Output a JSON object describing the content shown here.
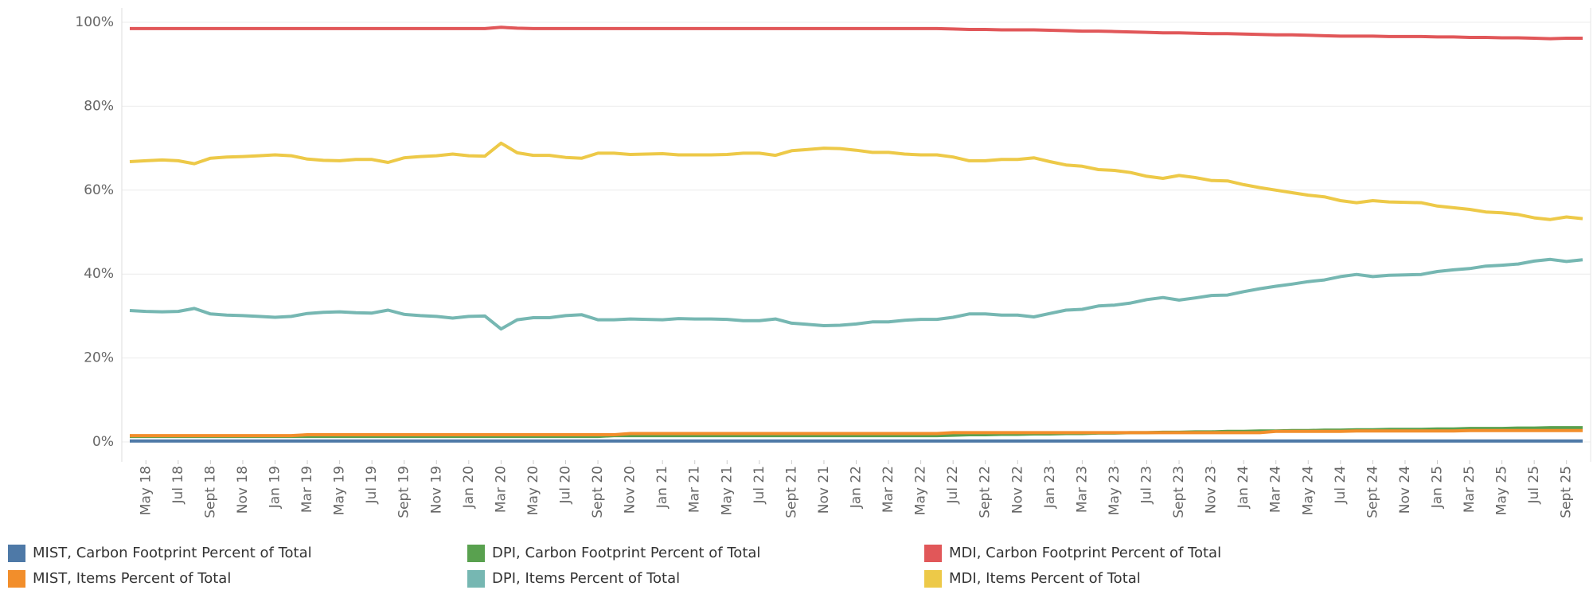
{
  "chart_data": {
    "type": "line",
    "categories": [
      null,
      "May 18",
      null,
      "Jul 18",
      null,
      "Sept 18",
      null,
      "Nov 18",
      null,
      "Jan 19",
      null,
      "Mar 19",
      null,
      "May 19",
      null,
      "Jul 19",
      null,
      "Sept 19",
      null,
      "Nov 19",
      null,
      "Jan 20",
      null,
      "Mar 20",
      null,
      "May 20",
      null,
      "Jul 20",
      null,
      "Sept 20",
      null,
      "Nov 20",
      null,
      "Jan 21",
      null,
      "Mar 21",
      null,
      "May 21",
      null,
      "Jul 21",
      null,
      "Sept 21",
      null,
      "Nov 21",
      null,
      "Jan 22",
      null,
      "Mar 22",
      null,
      "May 22",
      null,
      "Jul 22",
      null,
      "Sept 22",
      null,
      "Nov 22",
      null,
      "Jan 23",
      null,
      "Mar 23",
      null,
      "May 23",
      null,
      "Jul 23",
      null,
      "Sept 23",
      null,
      "Nov 23",
      null,
      "Jan 24",
      null,
      "Mar 24",
      null,
      "May 24",
      null,
      "Jul 24",
      null,
      "Sept 24",
      null,
      "Nov 24",
      null,
      "Jan 25",
      null,
      "Mar 25",
      null,
      "May 25",
      null,
      "Jul 25",
      null,
      "Sept 25",
      null
    ],
    "ylim": [
      0,
      100
    ],
    "yticks": [
      {
        "value": 0,
        "label": "0%"
      },
      {
        "value": 20,
        "label": "20%"
      },
      {
        "value": 40,
        "label": "40%"
      },
      {
        "value": 60,
        "label": "60%"
      },
      {
        "value": 80,
        "label": "80%"
      },
      {
        "value": 100,
        "label": "100%"
      }
    ],
    "grid": true,
    "series": [
      {
        "name": "MIST, Carbon Footprint Percent of Total",
        "color": "#4e79a7",
        "values": [
          0.2,
          0.2,
          0.2,
          0.2,
          0.2,
          0.2,
          0.2,
          0.2,
          0.2,
          0.2,
          0.2,
          0.2,
          0.2,
          0.2,
          0.2,
          0.2,
          0.2,
          0.2,
          0.2,
          0.2,
          0.2,
          0.2,
          0.2,
          0.2,
          0.2,
          0.2,
          0.2,
          0.2,
          0.2,
          0.2,
          0.2,
          0.2,
          0.2,
          0.2,
          0.2,
          0.2,
          0.2,
          0.2,
          0.2,
          0.2,
          0.2,
          0.2,
          0.2,
          0.2,
          0.2,
          0.2,
          0.2,
          0.2,
          0.2,
          0.2,
          0.2,
          0.2,
          0.2,
          0.2,
          0.2,
          0.2,
          0.2,
          0.2,
          0.2,
          0.2,
          0.2,
          0.2,
          0.2,
          0.2,
          0.2,
          0.2,
          0.2,
          0.2,
          0.2,
          0.2,
          0.2,
          0.2,
          0.2,
          0.2,
          0.2,
          0.2,
          0.2,
          0.2,
          0.2,
          0.2,
          0.2,
          0.2,
          0.2,
          0.2,
          0.2,
          0.2,
          0.2,
          0.2,
          0.2,
          0.2,
          0.2
        ]
      },
      {
        "name": "MIST, Items Percent of Total",
        "color": "#f28e2b",
        "values": [
          1.5,
          1.5,
          1.5,
          1.5,
          1.5,
          1.5,
          1.5,
          1.5,
          1.5,
          1.5,
          1.5,
          1.7,
          1.7,
          1.7,
          1.7,
          1.7,
          1.7,
          1.7,
          1.7,
          1.7,
          1.7,
          1.7,
          1.7,
          1.7,
          1.7,
          1.7,
          1.7,
          1.7,
          1.7,
          1.7,
          1.7,
          2,
          2,
          2,
          2,
          2,
          2,
          2,
          2,
          2,
          2,
          2,
          2,
          2,
          2,
          2,
          2,
          2,
          2,
          2,
          2,
          2.2,
          2.2,
          2.2,
          2.2,
          2.2,
          2.2,
          2.2,
          2.2,
          2.2,
          2.2,
          2.2,
          2.2,
          2.2,
          2.2,
          2.2,
          2.2,
          2.2,
          2.2,
          2.2,
          2.2,
          2.5,
          2.5,
          2.5,
          2.5,
          2.5,
          2.6,
          2.6,
          2.6,
          2.6,
          2.6,
          2.6,
          2.6,
          2.7,
          2.7,
          2.7,
          2.7,
          2.7,
          2.7,
          2.7,
          2.7
        ]
      },
      {
        "name": "DPI, Carbon Footprint Percent of Total",
        "color": "#59a14f",
        "values": [
          1.3,
          1.3,
          1.3,
          1.3,
          1.3,
          1.3,
          1.3,
          1.3,
          1.3,
          1.3,
          1.3,
          1.3,
          1.3,
          1.3,
          1.3,
          1.3,
          1.3,
          1.3,
          1.3,
          1.3,
          1.3,
          1.3,
          1.3,
          1.3,
          1.3,
          1.3,
          1.3,
          1.3,
          1.3,
          1.3,
          1.5,
          1.5,
          1.5,
          1.5,
          1.5,
          1.5,
          1.5,
          1.5,
          1.5,
          1.5,
          1.5,
          1.5,
          1.5,
          1.5,
          1.5,
          1.5,
          1.5,
          1.5,
          1.5,
          1.5,
          1.5,
          1.6,
          1.7,
          1.7,
          1.8,
          1.8,
          1.9,
          1.9,
          2,
          2,
          2.1,
          2.1,
          2.2,
          2.2,
          2.3,
          2.3,
          2.4,
          2.4,
          2.5,
          2.5,
          2.6,
          2.6,
          2.7,
          2.7,
          2.8,
          2.8,
          2.9,
          2.9,
          3,
          3,
          3,
          3.1,
          3.1,
          3.2,
          3.2,
          3.2,
          3.3,
          3.3,
          3.4,
          3.4,
          3.4
        ]
      },
      {
        "name": "DPI, Items Percent of Total",
        "color": "#76b7b2",
        "values": [
          31.3,
          31.1,
          31,
          31.1,
          31.8,
          30.5,
          30.2,
          30.1,
          29.9,
          29.7,
          29.9,
          30.6,
          30.9,
          31,
          30.8,
          30.7,
          31.4,
          30.4,
          30.1,
          29.9,
          29.5,
          29.9,
          30,
          26.9,
          29.1,
          29.6,
          29.6,
          30.1,
          30.3,
          29.1,
          29.1,
          29.3,
          29.2,
          29.1,
          29.4,
          29.3,
          29.3,
          29.2,
          28.9,
          28.9,
          29.3,
          28.3,
          28,
          27.7,
          27.8,
          28.1,
          28.6,
          28.6,
          29,
          29.2,
          29.2,
          29.7,
          30.5,
          30.5,
          30.2,
          30.2,
          29.8,
          30.6,
          31.4,
          31.6,
          32.4,
          32.6,
          33.1,
          33.9,
          34.4,
          33.8,
          34.3,
          34.9,
          35,
          35.8,
          36.5,
          37.1,
          37.6,
          38.2,
          38.6,
          39.4,
          39.9,
          39.4,
          39.7,
          39.8,
          39.9,
          40.6,
          41,
          41.3,
          41.9,
          42.1,
          42.4,
          43.1,
          43.5,
          43,
          43.4
        ]
      },
      {
        "name": "MDI, Carbon Footprint Percent of Total",
        "color": "#e15759",
        "values": [
          98.5,
          98.5,
          98.5,
          98.5,
          98.5,
          98.5,
          98.5,
          98.5,
          98.5,
          98.5,
          98.5,
          98.5,
          98.5,
          98.5,
          98.5,
          98.5,
          98.5,
          98.5,
          98.5,
          98.5,
          98.5,
          98.5,
          98.5,
          98.8,
          98.6,
          98.5,
          98.5,
          98.5,
          98.5,
          98.5,
          98.5,
          98.5,
          98.5,
          98.5,
          98.5,
          98.5,
          98.5,
          98.5,
          98.5,
          98.5,
          98.5,
          98.5,
          98.5,
          98.5,
          98.5,
          98.5,
          98.5,
          98.5,
          98.5,
          98.5,
          98.5,
          98.4,
          98.3,
          98.3,
          98.2,
          98.2,
          98.2,
          98.1,
          98,
          97.9,
          97.9,
          97.8,
          97.7,
          97.6,
          97.5,
          97.5,
          97.4,
          97.3,
          97.3,
          97.2,
          97.1,
          97,
          97,
          96.9,
          96.8,
          96.7,
          96.7,
          96.7,
          96.6,
          96.6,
          96.6,
          96.5,
          96.5,
          96.4,
          96.4,
          96.3,
          96.3,
          96.2,
          96.1,
          96.2,
          96.2
        ]
      },
      {
        "name": "MDI, Items Percent of Total",
        "color": "#edc948",
        "values": [
          66.8,
          67,
          67.2,
          67,
          66.3,
          67.6,
          67.9,
          68,
          68.2,
          68.4,
          68.2,
          67.4,
          67.1,
          67,
          67.3,
          67.3,
          66.6,
          67.7,
          68,
          68.2,
          68.6,
          68.2,
          68.1,
          71.2,
          68.9,
          68.3,
          68.3,
          67.8,
          67.6,
          68.8,
          68.8,
          68.5,
          68.6,
          68.7,
          68.4,
          68.4,
          68.4,
          68.5,
          68.8,
          68.8,
          68.3,
          69.4,
          69.7,
          70,
          69.9,
          69.5,
          69,
          69,
          68.6,
          68.4,
          68.4,
          67.9,
          67,
          67,
          67.3,
          67.3,
          67.7,
          66.8,
          66,
          65.7,
          64.9,
          64.7,
          64.2,
          63.3,
          62.8,
          63.5,
          63,
          62.3,
          62.2,
          61.3,
          60.6,
          60,
          59.4,
          58.8,
          58.4,
          57.5,
          57,
          57.5,
          57.2,
          57.1,
          57,
          56.2,
          55.8,
          55.4,
          54.8,
          54.6,
          54.2,
          53.4,
          53,
          53.6,
          53.2
        ]
      }
    ]
  }
}
